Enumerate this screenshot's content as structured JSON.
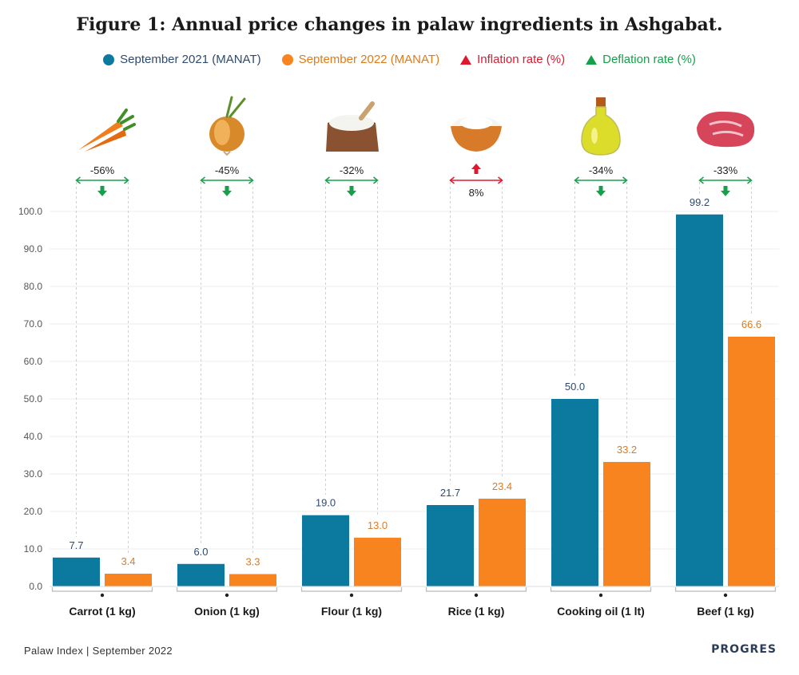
{
  "title": "Figure 1: Annual price changes in palaw ingredients in Ashgabat.",
  "legend": {
    "s1": "September 2021 (MANAT)",
    "s2": "September 2022 (MANAT)",
    "inflation": "Inflation rate (%)",
    "deflation": "Deflation rate (%)"
  },
  "colors": {
    "s1": "#0b7a9e",
    "s2": "#f7841e",
    "inflation": "#e0182e",
    "deflation": "#16a04a",
    "s1_text": "#2f4a6e",
    "s2_text": "#e07b1a"
  },
  "chart_data": {
    "type": "bar",
    "categories": [
      "Carrot (1 kg)",
      "Onion (1 kg)",
      "Flour (1 kg)",
      "Rice (1 kg)",
      "Cooking oil (1 lt)",
      "Beef (1 kg)"
    ],
    "series": [
      {
        "name": "September 2021 (MANAT)",
        "values": [
          7.7,
          6.0,
          19.0,
          21.7,
          50.0,
          99.2
        ],
        "labels": [
          "7.7",
          "6.0",
          "19.0",
          "21.7",
          "50.0",
          "99.2"
        ]
      },
      {
        "name": "September 2022 (MANAT)",
        "values": [
          3.4,
          3.3,
          13.0,
          23.4,
          33.2,
          66.6
        ],
        "labels": [
          "3.4",
          "3.3",
          "13.0",
          "23.4",
          "33.2",
          "66.6"
        ]
      }
    ],
    "changes": [
      {
        "label": "-56%",
        "direction": "down"
      },
      {
        "label": "-45%",
        "direction": "down"
      },
      {
        "label": "-32%",
        "direction": "down"
      },
      {
        "label": "8%",
        "direction": "up"
      },
      {
        "label": "-34%",
        "direction": "down"
      },
      {
        "label": "-33%",
        "direction": "down"
      }
    ],
    "icons": [
      "carrot-icon",
      "onion-icon",
      "flour-sack-icon",
      "rice-bowl-icon",
      "oil-bottle-icon",
      "beef-steak-icon"
    ],
    "yticks": [
      "0.0",
      "10.0",
      "20.0",
      "30.0",
      "40.0",
      "50.0",
      "60.0",
      "70.0",
      "80.0",
      "90.0",
      "100.0"
    ],
    "ylim": [
      0,
      100
    ],
    "grid": true,
    "legend_position": "top"
  },
  "footer": {
    "source": "Palaw Index | September 2022",
    "brand": "PROGRES"
  }
}
